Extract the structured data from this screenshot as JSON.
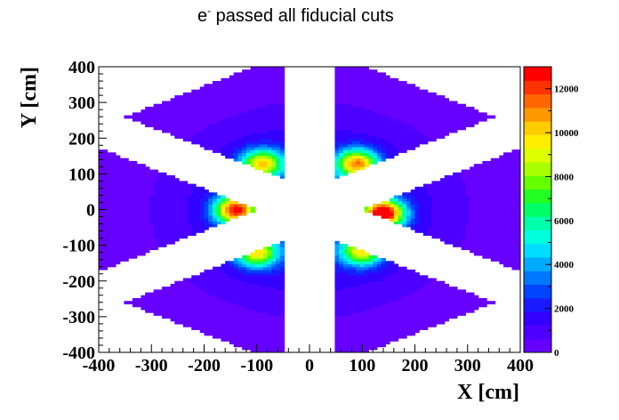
{
  "chart_data": {
    "type": "heatmap",
    "title": "e",
    "title_superscript": "-",
    "title_rest": " passed all fiducial cuts",
    "xlabel": "X [cm]",
    "ylabel": "Y [cm]",
    "xlim": [
      -400,
      400
    ],
    "ylim": [
      -400,
      400
    ],
    "x_ticks": [
      "-400",
      "-300",
      "-200",
      "-100",
      "0",
      "100",
      "200",
      "300",
      "400"
    ],
    "y_ticks": [
      "400",
      "300",
      "200",
      "100",
      "0",
      "-100",
      "-200",
      "-300",
      "-400"
    ],
    "x_tick_values": [
      -400,
      -300,
      -200,
      -100,
      0,
      100,
      200,
      300,
      400
    ],
    "y_tick_values": [
      400,
      300,
      200,
      100,
      0,
      -100,
      -200,
      -300,
      -400
    ],
    "zlim": [
      0,
      13000
    ],
    "z_ticks": [
      "12000",
      "10000",
      "8000",
      "6000",
      "4000",
      "2000",
      "0"
    ],
    "z_tick_values": [
      12000,
      10000,
      8000,
      6000,
      4000,
      2000,
      0
    ],
    "palette": [
      "#6600ff",
      "#4d00ff",
      "#3300ff",
      "#1a1aff",
      "#0044ff",
      "#0077ff",
      "#00aaff",
      "#00ddff",
      "#00ffdd",
      "#00ffaa",
      "#00ff66",
      "#22ff22",
      "#66ff00",
      "#aaff00",
      "#ddff00",
      "#ffee00",
      "#ffcc00",
      "#ff9900",
      "#ff6600",
      "#ff3300",
      "#ff0000"
    ],
    "sectors": [
      {
        "name": "sector-top-left",
        "angle_deg": 120
      },
      {
        "name": "sector-top-right",
        "angle_deg": 60
      },
      {
        "name": "sector-right",
        "angle_deg": 0
      },
      {
        "name": "sector-bottom-right",
        "angle_deg": -60
      },
      {
        "name": "sector-bottom-left",
        "angle_deg": -120
      },
      {
        "name": "sector-left",
        "angle_deg": 180
      }
    ],
    "hotspots": [
      {
        "x": -140,
        "y": 0,
        "value": 11000
      },
      {
        "x": 140,
        "y": -10,
        "value": 12500
      },
      {
        "x": -90,
        "y": 130,
        "value": 8500
      },
      {
        "x": 90,
        "y": 130,
        "value": 9500
      },
      {
        "x": -100,
        "y": -120,
        "value": 8000
      },
      {
        "x": 100,
        "y": -115,
        "value": 8000
      }
    ],
    "grid": false
  }
}
